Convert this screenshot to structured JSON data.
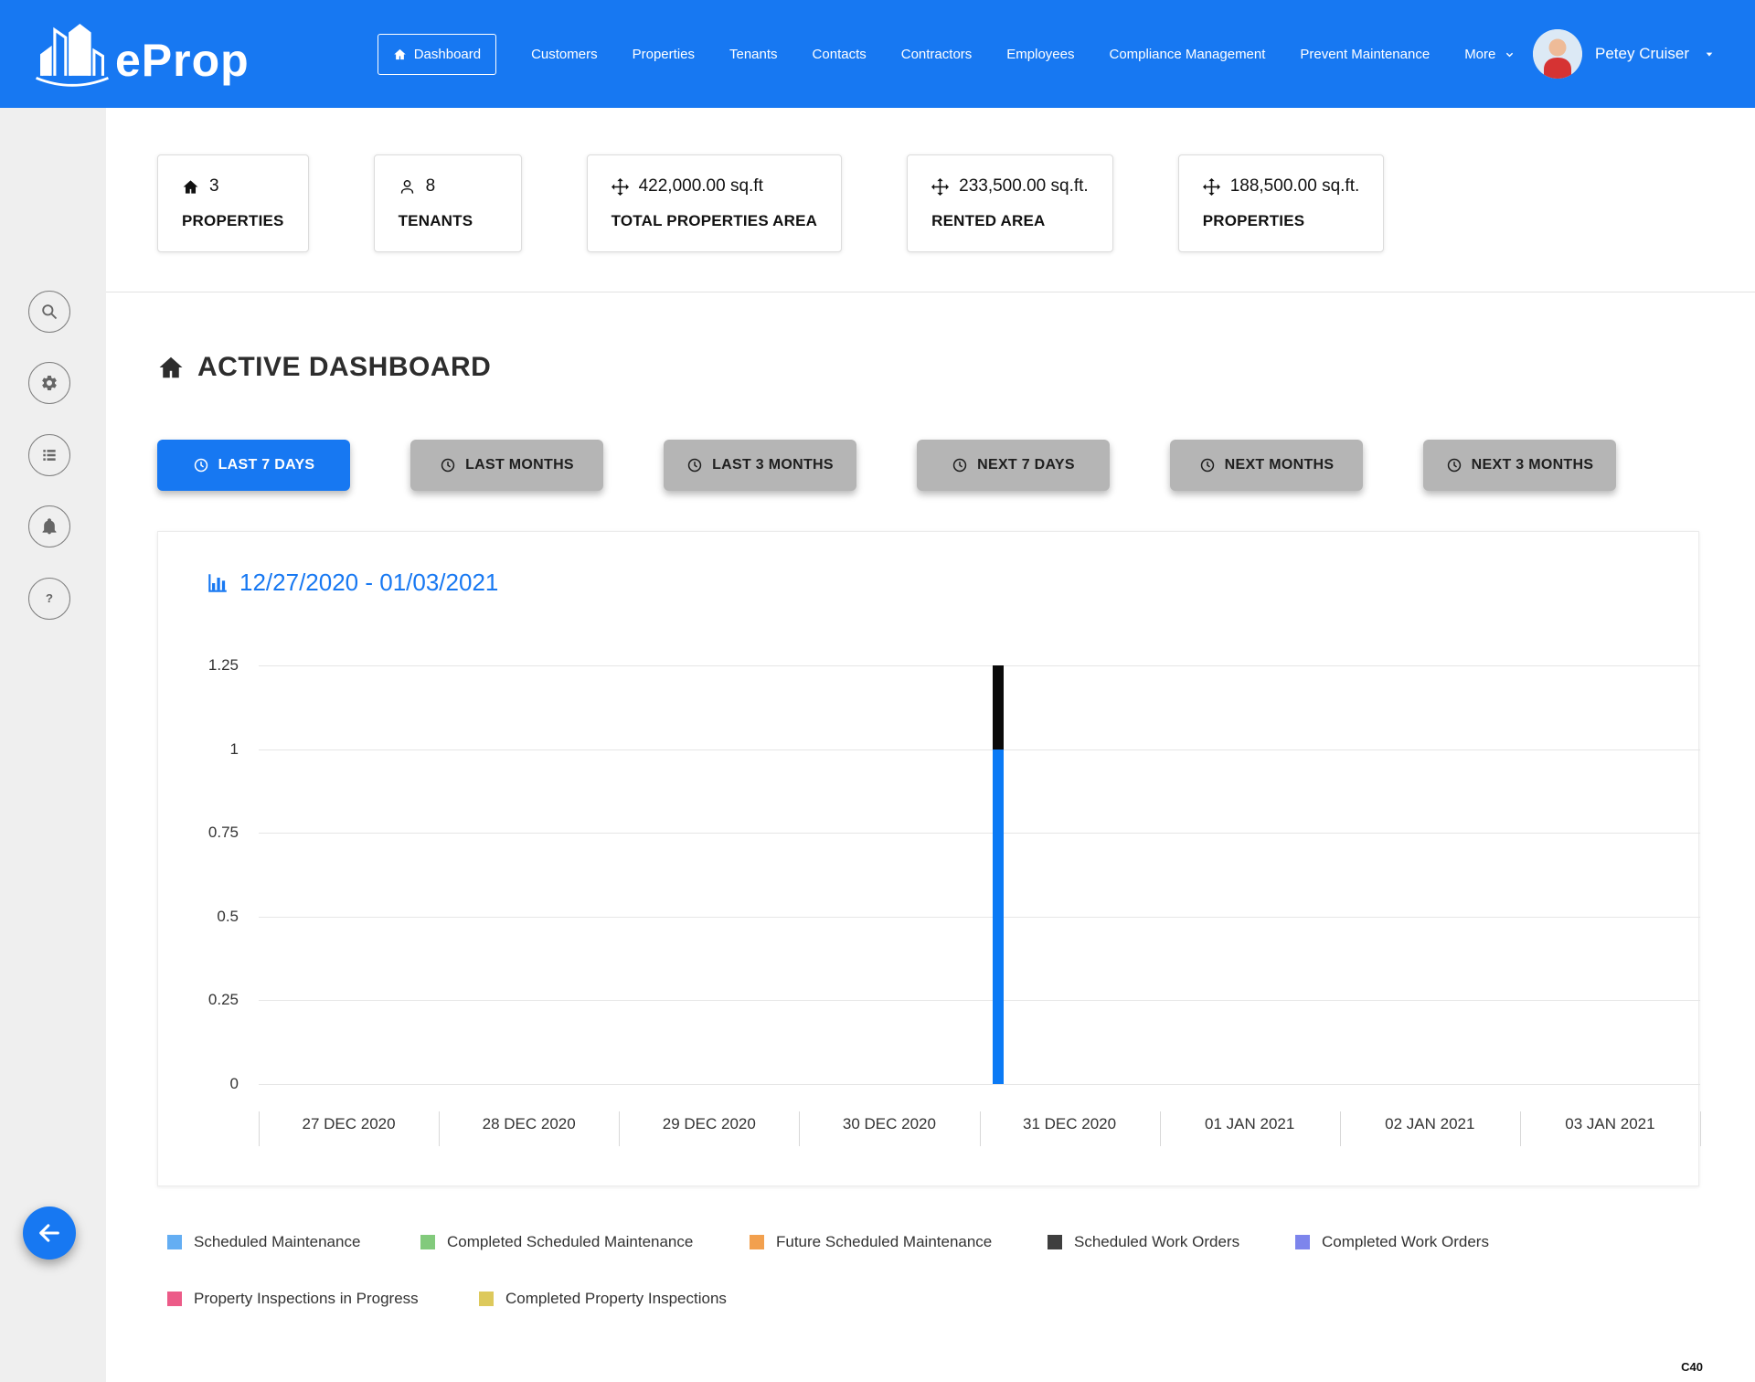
{
  "header": {
    "brand": "eProp",
    "brand_icon": "buildings-logo-icon",
    "nav_items": [
      {
        "label": "Dashboard",
        "icon": "home-icon",
        "active": true
      },
      {
        "label": "Customers"
      },
      {
        "label": "Properties"
      },
      {
        "label": "Tenants"
      },
      {
        "label": "Contacts"
      },
      {
        "label": "Contractors"
      },
      {
        "label": "Employees"
      },
      {
        "label": "Compliance Management"
      },
      {
        "label": "Prevent Maintenance"
      },
      {
        "label": "More",
        "icon_right": "chevron-down-icon"
      }
    ],
    "user": {
      "name": "Petey Cruiser",
      "caret_icon": "caret-down-icon",
      "avatar_icon": "avatar-photo"
    }
  },
  "sidebar": {
    "buttons": [
      {
        "icon": "search-icon"
      },
      {
        "icon": "gear-icon"
      },
      {
        "icon": "list-icon"
      },
      {
        "icon": "bell-icon"
      },
      {
        "icon": "help-icon"
      }
    ],
    "back_icon": "arrow-left-icon"
  },
  "stats": [
    {
      "icon": "home-icon",
      "value": "3",
      "label": "PROPERTIES"
    },
    {
      "icon": "person-icon",
      "value": "8",
      "label": "TENANTS"
    },
    {
      "icon": "move-icon",
      "value": "422,000.00 sq.ft",
      "label": "TOTAL PROPERTIES AREA"
    },
    {
      "icon": "move-icon",
      "value": "233,500.00 sq.ft.",
      "label": "RENTED AREA"
    },
    {
      "icon": "move-icon",
      "value": "188,500.00 sq.ft.",
      "label": "PROPERTIES"
    }
  ],
  "page": {
    "title": "ACTIVE DASHBOARD",
    "icon": "home-icon"
  },
  "filters": [
    {
      "label": "LAST 7 DAYS",
      "icon": "clock-icon",
      "active": true
    },
    {
      "label": "LAST MONTHS",
      "icon": "clock-icon"
    },
    {
      "label": "LAST 3 MONTHS",
      "icon": "clock-icon"
    },
    {
      "label": "NEXT 7 DAYS",
      "icon": "clock-icon"
    },
    {
      "label": "NEXT MONTHS",
      "icon": "clock-icon"
    },
    {
      "label": "NEXT 3 MONTHS",
      "icon": "clock-icon"
    }
  ],
  "chart": {
    "title": "12/27/2020 - 01/03/2021",
    "icon": "bar-chart-icon"
  },
  "chart_data": {
    "type": "bar",
    "stacked": true,
    "title": "12/27/2020 - 01/03/2021",
    "categories": [
      "27 DEC 2020",
      "28 DEC 2020",
      "29 DEC 2020",
      "30 DEC 2020",
      "31 DEC 2020",
      "01 JAN 2021",
      "02 JAN 2021",
      "03 JAN 2021"
    ],
    "y_ticks": [
      "0",
      "0.25",
      "0.5",
      "0.75",
      "1",
      "1.25"
    ],
    "ylim": [
      0,
      1.25
    ],
    "grid": "horizontal",
    "legend_position": "bottom",
    "series": [
      {
        "name": "Scheduled Maintenance",
        "color": "#0b7af5",
        "values": [
          0,
          0,
          0,
          0,
          1,
          0,
          0,
          0
        ]
      },
      {
        "name": "Completed Scheduled Maintenance",
        "color": "#82ca7c",
        "values": [
          0,
          0,
          0,
          0,
          0,
          0,
          0,
          0
        ]
      },
      {
        "name": "Future Scheduled Maintenance",
        "color": "#f2a04e",
        "values": [
          0,
          0,
          0,
          0,
          0,
          0,
          0,
          0
        ]
      },
      {
        "name": "Scheduled Work Orders",
        "color": "#0a0a0a",
        "values": [
          0,
          0,
          0,
          0,
          0.25,
          0,
          0,
          0
        ]
      },
      {
        "name": "Completed Work Orders",
        "color": "#7d85ec",
        "values": [
          0,
          0,
          0,
          0,
          0,
          0,
          0,
          0
        ]
      },
      {
        "name": "Property Inspections in Progress",
        "color": "#ec5b88",
        "values": [
          0,
          0,
          0,
          0,
          0,
          0,
          0,
          0
        ]
      },
      {
        "name": "Completed Property Inspections",
        "color": "#ddc95c",
        "values": [
          0,
          0,
          0,
          0,
          0,
          0,
          0,
          0
        ]
      }
    ],
    "legend": [
      {
        "label": "Scheduled Maintenance",
        "color": "#64aef3"
      },
      {
        "label": "Completed Scheduled Maintenance",
        "color": "#82ca7c"
      },
      {
        "label": "Future Scheduled Maintenance",
        "color": "#f2a04e"
      },
      {
        "label": "Scheduled Work Orders",
        "color": "#3f3f3f"
      },
      {
        "label": "Completed Work Orders",
        "color": "#7d85ec"
      },
      {
        "label": "Property Inspections in Progress",
        "color": "#ec5b88"
      },
      {
        "label": "Completed Property Inspections",
        "color": "#ddc95c"
      }
    ]
  },
  "footer": {
    "version": "C40"
  },
  "colors": {
    "primary": "#1778f2",
    "inactive_button": "#b5b5b5",
    "bar_blue": "#0b7af5",
    "bar_black": "#0a0a0a"
  }
}
